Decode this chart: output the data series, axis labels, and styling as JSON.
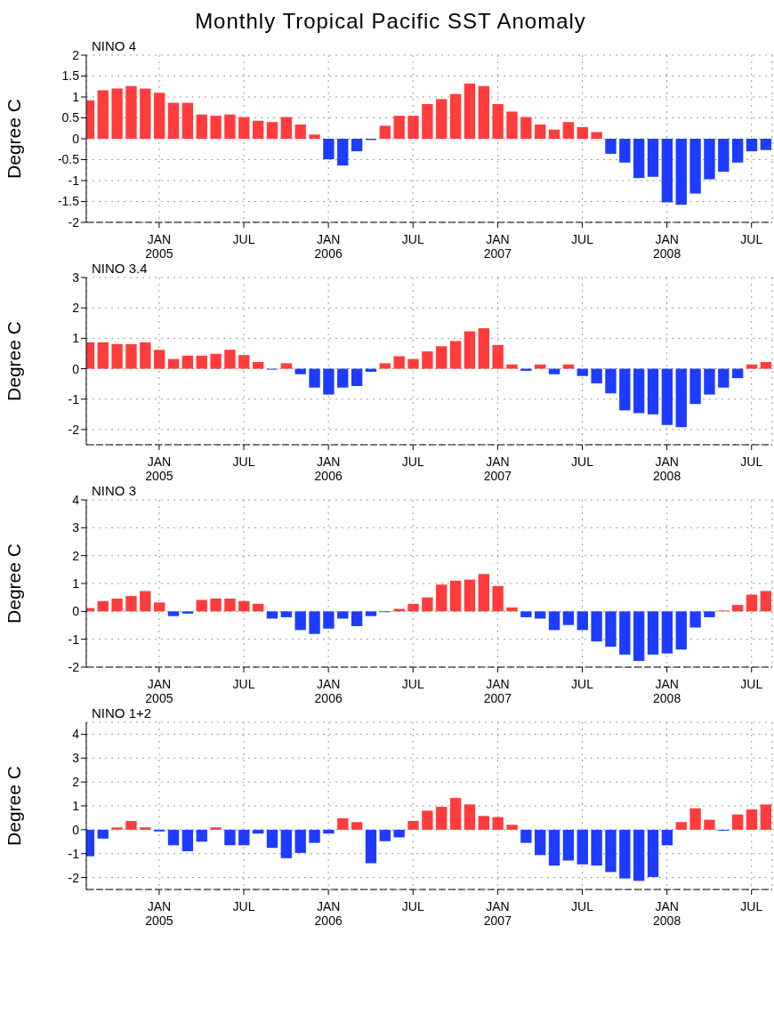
{
  "chart_data": [
    {
      "type": "bar",
      "title": "Monthly Tropical Pacific SST Anomaly",
      "subtitle": "NINO 4",
      "ylabel": "Degree C",
      "grid": true,
      "x": [
        "2004-08",
        "2004-09",
        "2004-10",
        "2004-11",
        "2004-12",
        "2005-01",
        "2005-02",
        "2005-03",
        "2005-04",
        "2005-05",
        "2005-06",
        "2005-07",
        "2005-08",
        "2005-09",
        "2005-10",
        "2005-11",
        "2005-12",
        "2006-01",
        "2006-02",
        "2006-03",
        "2006-04",
        "2006-05",
        "2006-06",
        "2006-07",
        "2006-08",
        "2006-09",
        "2006-10",
        "2006-11",
        "2006-12",
        "2007-01",
        "2007-02",
        "2007-03",
        "2007-04",
        "2007-05",
        "2007-06",
        "2007-07",
        "2007-08",
        "2007-09",
        "2007-10",
        "2007-11",
        "2007-12",
        "2008-01",
        "2008-02",
        "2008-03",
        "2008-04",
        "2008-05",
        "2008-06",
        "2008-07",
        "2008-08"
      ],
      "values": [
        0.92,
        1.16,
        1.2,
        1.26,
        1.2,
        1.1,
        0.86,
        0.86,
        0.58,
        0.55,
        0.58,
        0.52,
        0.43,
        0.4,
        0.52,
        0.34,
        0.1,
        -0.49,
        -0.64,
        -0.3,
        -0.03,
        0.31,
        0.55,
        0.55,
        0.83,
        0.95,
        1.07,
        1.32,
        1.26,
        0.83,
        0.65,
        0.52,
        0.34,
        0.22,
        0.4,
        0.28,
        0.16,
        -0.36,
        -0.57,
        -0.94,
        -0.91,
        -1.52,
        -1.58,
        -1.31,
        -0.97,
        -0.79,
        -0.57,
        -0.3,
        -0.27
      ],
      "colors": [
        "#ff3c3c",
        "#ff3c3c",
        "#ff3c3c",
        "#ff3c3c",
        "#ff3c3c",
        "#ff3c3c",
        "#ff3c3c",
        "#ff3c3c",
        "#ff3c3c",
        "#ff3c3c",
        "#ff3c3c",
        "#ff3c3c",
        "#ff3c3c",
        "#ff3c3c",
        "#ff3c3c",
        "#ff3c3c",
        "#ff3c3c",
        "#1e3cff",
        "#1e3cff",
        "#1e3cff",
        "#1e3cff",
        "#ff3c3c",
        "#ff3c3c",
        "#ff3c3c",
        "#ff3c3c",
        "#ff3c3c",
        "#ff3c3c",
        "#ff3c3c",
        "#ff3c3c",
        "#ff3c3c",
        "#ff3c3c",
        "#ff3c3c",
        "#ff3c3c",
        "#ff3c3c",
        "#ff3c3c",
        "#ff3c3c",
        "#ff3c3c",
        "#1e3cff",
        "#1e3cff",
        "#1e3cff",
        "#1e3cff",
        "#1e3cff",
        "#1e3cff",
        "#1e3cff",
        "#1e3cff",
        "#1e3cff",
        "#1e3cff",
        "#1e3cff",
        "#1e3cff"
      ],
      "xlim": [
        "2004-07-26",
        "2008-08-15"
      ],
      "xticks": [
        {
          "value": "2005-01",
          "label": "JAN 2005"
        },
        {
          "value": "2005-07",
          "label": "JUL"
        },
        {
          "value": "2006-01",
          "label": "JAN 2006"
        },
        {
          "value": "2006-07",
          "label": "JUL"
        },
        {
          "value": "2007-01",
          "label": "JAN 2007"
        },
        {
          "value": "2007-07",
          "label": "JUL"
        },
        {
          "value": "2008-01",
          "label": "JAN 2008"
        },
        {
          "value": "2008-07",
          "label": "JUL"
        }
      ],
      "ylim": [
        -2,
        2
      ],
      "yticks": [
        -2,
        -1.5,
        -1,
        -0.5,
        0,
        0.5,
        1,
        1.5,
        2
      ]
    },
    {
      "type": "bar",
      "subtitle": "NINO 3.4",
      "ylabel": "Degree C",
      "grid": true,
      "x": [
        "2004-08",
        "2004-09",
        "2004-10",
        "2004-11",
        "2004-12",
        "2005-01",
        "2005-02",
        "2005-03",
        "2005-04",
        "2005-05",
        "2005-06",
        "2005-07",
        "2005-08",
        "2005-09",
        "2005-10",
        "2005-11",
        "2005-12",
        "2006-01",
        "2006-02",
        "2006-03",
        "2006-04",
        "2006-05",
        "2006-06",
        "2006-07",
        "2006-08",
        "2006-09",
        "2006-10",
        "2006-11",
        "2006-12",
        "2007-01",
        "2007-02",
        "2007-03",
        "2007-04",
        "2007-05",
        "2007-06",
        "2007-07",
        "2007-08",
        "2007-09",
        "2007-10",
        "2007-11",
        "2007-12",
        "2008-01",
        "2008-02",
        "2008-03",
        "2008-04",
        "2008-05",
        "2008-06",
        "2008-07",
        "2008-08"
      ],
      "values": [
        0.87,
        0.87,
        0.81,
        0.81,
        0.87,
        0.62,
        0.32,
        0.43,
        0.43,
        0.49,
        0.62,
        0.45,
        0.22,
        -0.03,
        0.18,
        -0.18,
        -0.62,
        -0.85,
        -0.62,
        -0.57,
        -0.1,
        0.18,
        0.41,
        0.32,
        0.57,
        0.74,
        0.91,
        1.23,
        1.33,
        0.78,
        0.14,
        -0.07,
        0.14,
        -0.18,
        0.14,
        -0.24,
        -0.48,
        -0.81,
        -1.37,
        -1.46,
        -1.5,
        -1.85,
        -1.92,
        -1.16,
        -0.85,
        -0.62,
        -0.31,
        0.14,
        0.22
      ],
      "colors": [
        "#ff3c3c",
        "#ff3c3c",
        "#ff3c3c",
        "#ff3c3c",
        "#ff3c3c",
        "#ff3c3c",
        "#ff3c3c",
        "#ff3c3c",
        "#ff3c3c",
        "#ff3c3c",
        "#ff3c3c",
        "#ff3c3c",
        "#ff3c3c",
        "#1e3cff",
        "#ff3c3c",
        "#1e3cff",
        "#1e3cff",
        "#1e3cff",
        "#1e3cff",
        "#1e3cff",
        "#1e3cff",
        "#ff3c3c",
        "#ff3c3c",
        "#ff3c3c",
        "#ff3c3c",
        "#ff3c3c",
        "#ff3c3c",
        "#ff3c3c",
        "#ff3c3c",
        "#ff3c3c",
        "#ff3c3c",
        "#1e3cff",
        "#ff3c3c",
        "#1e3cff",
        "#ff3c3c",
        "#1e3cff",
        "#1e3cff",
        "#1e3cff",
        "#1e3cff",
        "#1e3cff",
        "#1e3cff",
        "#1e3cff",
        "#1e3cff",
        "#1e3cff",
        "#1e3cff",
        "#1e3cff",
        "#1e3cff",
        "#ff3c3c",
        "#ff3c3c"
      ],
      "xlim": [
        "2004-07-26",
        "2008-08-15"
      ],
      "xticks": [
        {
          "value": "2005-01",
          "label": "JAN 2005"
        },
        {
          "value": "2005-07",
          "label": "JUL"
        },
        {
          "value": "2006-01",
          "label": "JAN 2006"
        },
        {
          "value": "2006-07",
          "label": "JUL"
        },
        {
          "value": "2007-01",
          "label": "JAN 2007"
        },
        {
          "value": "2007-07",
          "label": "JUL"
        },
        {
          "value": "2008-01",
          "label": "JAN 2008"
        },
        {
          "value": "2008-07",
          "label": "JUL"
        }
      ],
      "ylim": [
        -2.5,
        3
      ],
      "yticks": [
        -2,
        -1,
        0,
        1,
        2,
        3
      ]
    },
    {
      "type": "bar",
      "subtitle": "NINO 3",
      "ylabel": "Degree C",
      "grid": true,
      "x": [
        "2004-08",
        "2004-09",
        "2004-10",
        "2004-11",
        "2004-12",
        "2005-01",
        "2005-02",
        "2005-03",
        "2005-04",
        "2005-05",
        "2005-06",
        "2005-07",
        "2005-08",
        "2005-09",
        "2005-10",
        "2005-11",
        "2005-12",
        "2006-01",
        "2006-02",
        "2006-03",
        "2006-04",
        "2006-05",
        "2006-06",
        "2006-07",
        "2006-08",
        "2006-09",
        "2006-10",
        "2006-11",
        "2006-12",
        "2007-01",
        "2007-02",
        "2007-03",
        "2007-04",
        "2007-05",
        "2007-06",
        "2007-07",
        "2007-08",
        "2007-09",
        "2007-10",
        "2007-11",
        "2007-12",
        "2008-01",
        "2008-02",
        "2008-03",
        "2008-04",
        "2008-05",
        "2008-06",
        "2008-07",
        "2008-08"
      ],
      "values": [
        0.12,
        0.37,
        0.46,
        0.55,
        0.73,
        0.32,
        -0.17,
        -0.08,
        0.41,
        0.46,
        0.46,
        0.37,
        0.27,
        -0.26,
        -0.21,
        -0.67,
        -0.81,
        -0.62,
        -0.26,
        -0.53,
        -0.17,
        -0.03,
        0.09,
        0.27,
        0.5,
        0.96,
        1.1,
        1.14,
        1.34,
        0.91,
        0.14,
        -0.21,
        -0.26,
        -0.67,
        -0.49,
        -0.67,
        -1.08,
        -1.27,
        -1.55,
        -1.78,
        -1.55,
        -1.51,
        -1.37,
        -0.58,
        -0.21,
        0.03,
        0.23,
        0.6,
        0.73
      ],
      "colors": [
        "#ff3c3c",
        "#ff3c3c",
        "#ff3c3c",
        "#ff3c3c",
        "#ff3c3c",
        "#ff3c3c",
        "#1e3cff",
        "#1e3cff",
        "#ff3c3c",
        "#ff3c3c",
        "#ff3c3c",
        "#ff3c3c",
        "#ff3c3c",
        "#1e3cff",
        "#1e3cff",
        "#1e3cff",
        "#1e3cff",
        "#1e3cff",
        "#1e3cff",
        "#1e3cff",
        "#1e3cff",
        "#1e3cff",
        "#ff3c3c",
        "#ff3c3c",
        "#ff3c3c",
        "#ff3c3c",
        "#ff3c3c",
        "#ff3c3c",
        "#ff3c3c",
        "#ff3c3c",
        "#ff3c3c",
        "#1e3cff",
        "#1e3cff",
        "#1e3cff",
        "#1e3cff",
        "#1e3cff",
        "#1e3cff",
        "#1e3cff",
        "#1e3cff",
        "#1e3cff",
        "#1e3cff",
        "#1e3cff",
        "#1e3cff",
        "#1e3cff",
        "#1e3cff",
        "#ff3c3c",
        "#ff3c3c",
        "#ff3c3c",
        "#ff3c3c"
      ],
      "xlim": [
        "2004-07-26",
        "2008-08-15"
      ],
      "xticks": [
        {
          "value": "2005-01",
          "label": "JAN 2005"
        },
        {
          "value": "2005-07",
          "label": "JUL"
        },
        {
          "value": "2006-01",
          "label": "JAN 2006"
        },
        {
          "value": "2006-07",
          "label": "JUL"
        },
        {
          "value": "2007-01",
          "label": "JAN 2007"
        },
        {
          "value": "2007-07",
          "label": "JUL"
        },
        {
          "value": "2008-01",
          "label": "JAN 2008"
        },
        {
          "value": "2008-07",
          "label": "JUL"
        }
      ],
      "ylim": [
        -2,
        4
      ],
      "yticks": [
        -2,
        -1,
        0,
        1,
        2,
        3,
        4
      ]
    },
    {
      "type": "bar",
      "subtitle": "NINO 1+2",
      "ylabel": "Degree C",
      "grid": true,
      "x": [
        "2004-08",
        "2004-09",
        "2004-10",
        "2004-11",
        "2004-12",
        "2005-01",
        "2005-02",
        "2005-03",
        "2005-04",
        "2005-05",
        "2005-06",
        "2005-07",
        "2005-08",
        "2005-09",
        "2005-10",
        "2005-11",
        "2005-12",
        "2006-01",
        "2006-02",
        "2006-03",
        "2006-04",
        "2006-05",
        "2006-06",
        "2006-07",
        "2006-08",
        "2006-09",
        "2006-10",
        "2006-11",
        "2006-12",
        "2007-01",
        "2007-02",
        "2007-03",
        "2007-04",
        "2007-05",
        "2007-06",
        "2007-07",
        "2007-08",
        "2007-09",
        "2007-10",
        "2007-11",
        "2007-12",
        "2008-01",
        "2008-02",
        "2008-03",
        "2008-04",
        "2008-05",
        "2008-06",
        "2008-07",
        "2008-08"
      ],
      "values": [
        -1.11,
        -0.37,
        0.1,
        0.37,
        0.1,
        -0.07,
        -0.65,
        -0.9,
        -0.5,
        0.1,
        -0.65,
        -0.65,
        -0.16,
        -0.76,
        -1.19,
        -0.97,
        -0.55,
        -0.16,
        0.48,
        0.32,
        -1.4,
        -0.48,
        -0.32,
        0.37,
        0.8,
        0.96,
        1.33,
        1.06,
        0.58,
        0.53,
        0.21,
        -0.55,
        -1.06,
        -1.5,
        -1.29,
        -1.45,
        -1.5,
        -1.77,
        -2.04,
        -2.14,
        -1.98,
        -0.65,
        0.32,
        0.9,
        0.42,
        -0.04,
        0.64,
        0.85,
        1.06
      ],
      "colors": [
        "#1e3cff",
        "#1e3cff",
        "#ff3c3c",
        "#ff3c3c",
        "#ff3c3c",
        "#1e3cff",
        "#1e3cff",
        "#1e3cff",
        "#1e3cff",
        "#ff3c3c",
        "#1e3cff",
        "#1e3cff",
        "#1e3cff",
        "#1e3cff",
        "#1e3cff",
        "#1e3cff",
        "#1e3cff",
        "#1e3cff",
        "#ff3c3c",
        "#ff3c3c",
        "#1e3cff",
        "#1e3cff",
        "#1e3cff",
        "#ff3c3c",
        "#ff3c3c",
        "#ff3c3c",
        "#ff3c3c",
        "#ff3c3c",
        "#ff3c3c",
        "#ff3c3c",
        "#ff3c3c",
        "#1e3cff",
        "#1e3cff",
        "#1e3cff",
        "#1e3cff",
        "#1e3cff",
        "#1e3cff",
        "#1e3cff",
        "#1e3cff",
        "#1e3cff",
        "#1e3cff",
        "#1e3cff",
        "#ff3c3c",
        "#ff3c3c",
        "#ff3c3c",
        "#1e3cff",
        "#ff3c3c",
        "#ff3c3c",
        "#ff3c3c"
      ],
      "xlim": [
        "2004-07-26",
        "2008-08-15"
      ],
      "xticks": [
        {
          "value": "2005-01",
          "label": "JAN 2005"
        },
        {
          "value": "2005-07",
          "label": "JUL"
        },
        {
          "value": "2006-01",
          "label": "JAN 2006"
        },
        {
          "value": "2006-07",
          "label": "JUL"
        },
        {
          "value": "2007-01",
          "label": "JAN 2007"
        },
        {
          "value": "2007-07",
          "label": "JUL"
        },
        {
          "value": "2008-01",
          "label": "JAN 2008"
        },
        {
          "value": "2008-07",
          "label": "JUL"
        }
      ],
      "ylim": [
        -2.5,
        4.5
      ],
      "yticks": [
        -2,
        -1,
        0,
        1,
        2,
        3,
        4
      ]
    }
  ]
}
